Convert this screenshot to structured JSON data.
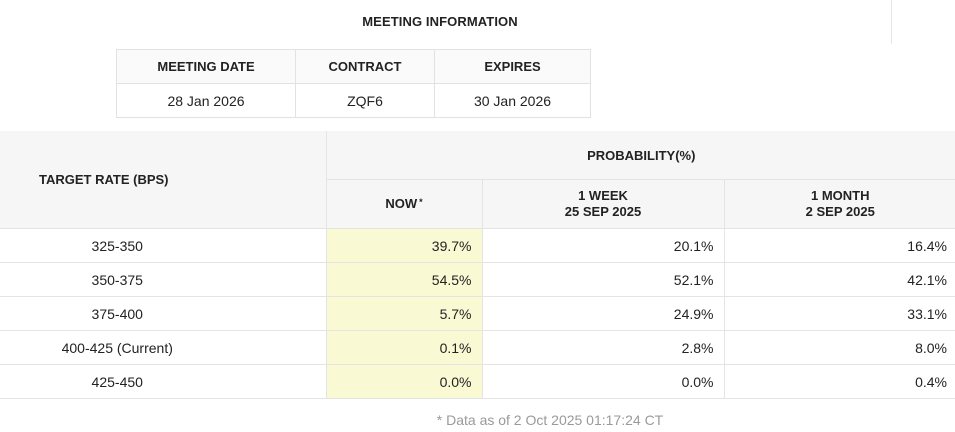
{
  "meeting_info": {
    "title": "MEETING INFORMATION",
    "headers": [
      "MEETING DATE",
      "CONTRACT",
      "EXPIRES"
    ],
    "values": [
      "28 Jan 2026",
      "ZQF6",
      "30 Jan 2026"
    ]
  },
  "probability_table": {
    "target_rate_header": "TARGET RATE (BPS)",
    "probability_header": "PROBABILITY(%)",
    "columns": {
      "now": {
        "label": "NOW",
        "marker": "*"
      },
      "week": {
        "line1": "1 WEEK",
        "line2": "25 SEP 2025"
      },
      "month": {
        "line1": "1 MONTH",
        "line2": "2 SEP 2025"
      }
    },
    "rows": [
      {
        "rate": "325-350",
        "now": "39.7%",
        "week": "20.1%",
        "month": "16.4%"
      },
      {
        "rate": "350-375",
        "now": "54.5%",
        "week": "52.1%",
        "month": "42.1%"
      },
      {
        "rate": "375-400",
        "now": "5.7%",
        "week": "24.9%",
        "month": "33.1%"
      },
      {
        "rate": "400-425 (Current)",
        "now": "0.1%",
        "week": "2.8%",
        "month": "8.0%"
      },
      {
        "rate": "425-450",
        "now": "0.0%",
        "week": "0.0%",
        "month": "0.4%"
      }
    ]
  },
  "footnote": "* Data as of 2 Oct 2025 01:17:24 CT",
  "colors": {
    "now_highlight": "#f9f9d4",
    "header_bg": "#f6f6f6",
    "border": "#e4e4e4"
  }
}
